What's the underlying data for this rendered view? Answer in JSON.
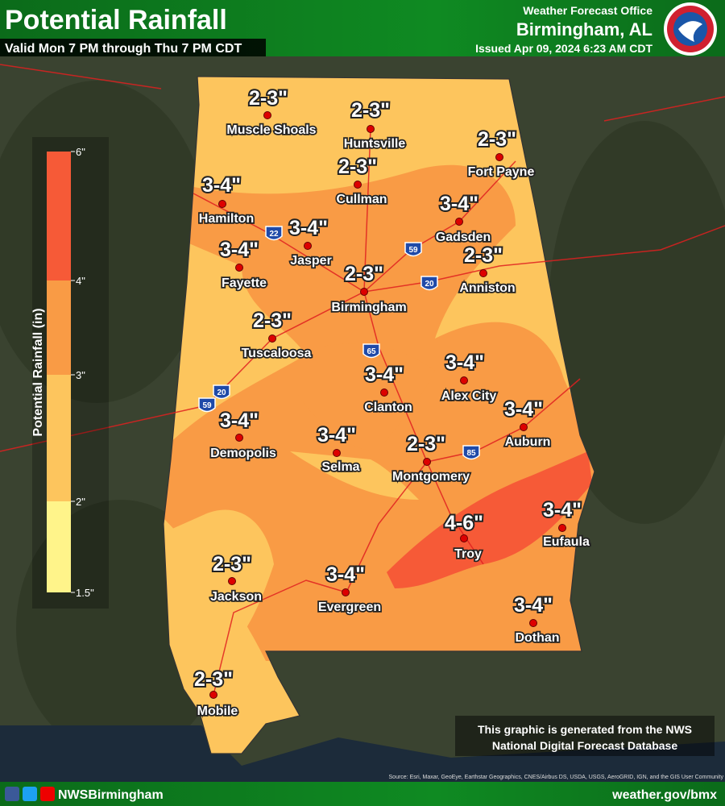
{
  "header": {
    "title": "Potential Rainfall",
    "subtitle": "Valid Mon 7 PM through Thu 7 PM CDT",
    "office": "Weather Forecast Office",
    "location": "Birmingham, AL",
    "issued": "Issued Apr 09, 2024 6:23 AM CDT"
  },
  "legend": {
    "title": "Potential Rainfall (in)",
    "ticks": [
      "6\"",
      "4\"",
      "3\"",
      "2\"",
      "1.5\""
    ]
  },
  "cities": [
    {
      "name": "Muscle Shoals",
      "amount": "2-3\""
    },
    {
      "name": "Huntsville",
      "amount": "2-3\""
    },
    {
      "name": "Fort Payne",
      "amount": "2-3\""
    },
    {
      "name": "Cullman",
      "amount": "2-3\""
    },
    {
      "name": "Hamilton",
      "amount": "3-4\""
    },
    {
      "name": "Gadsden",
      "amount": "3-4\""
    },
    {
      "name": "Jasper",
      "amount": "3-4\""
    },
    {
      "name": "Fayette",
      "amount": "3-4\""
    },
    {
      "name": "Anniston",
      "amount": "2-3\""
    },
    {
      "name": "Birmingham",
      "amount": "2-3\""
    },
    {
      "name": "Tuscaloosa",
      "amount": "2-3\""
    },
    {
      "name": "Alex City",
      "amount": "3-4\""
    },
    {
      "name": "Clanton",
      "amount": "3-4\""
    },
    {
      "name": "Auburn",
      "amount": "3-4\""
    },
    {
      "name": "Demopolis",
      "amount": "3-4\""
    },
    {
      "name": "Selma",
      "amount": "3-4\""
    },
    {
      "name": "Montgomery",
      "amount": "2-3\""
    },
    {
      "name": "Troy",
      "amount": "4-6\""
    },
    {
      "name": "Eufaula",
      "amount": "3-4\""
    },
    {
      "name": "Jackson",
      "amount": "2-3\""
    },
    {
      "name": "Evergreen",
      "amount": "3-4\""
    },
    {
      "name": "Dothan",
      "amount": "3-4\""
    },
    {
      "name": "Mobile",
      "amount": "2-3\""
    }
  ],
  "interstates": [
    "22",
    "59",
    "20",
    "65",
    "20",
    "59",
    "85"
  ],
  "note": [
    "This graphic is generated from the NWS",
    "National Digital Forecast Database"
  ],
  "source": "Source: Esri, Maxar, GeoEye, Earthstar Geographics, CNES/Airbus DS, USDA, USGS, AeroGRID, IGN, and the GIS User Community",
  "footer": {
    "social": "NWSBirmingham",
    "url": "weather.gov/bmx"
  }
}
